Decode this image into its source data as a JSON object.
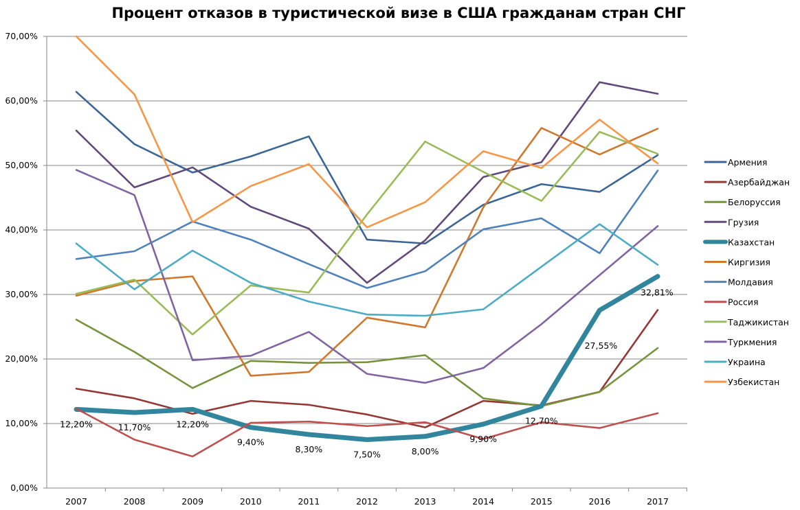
{
  "chart_data": {
    "type": "line",
    "title": "Процент отказов в туристической визе в США гражданам стран СНГ",
    "xlabel": "",
    "ylabel": "",
    "ylim": [
      0,
      70
    ],
    "grid": true,
    "legend_position": "right",
    "x": [
      "2007",
      "2008",
      "2009",
      "2010",
      "2011",
      "2012",
      "2013",
      "2014",
      "2015",
      "2016",
      "2017"
    ],
    "y_ticks": [
      "0,00%",
      "10,00%",
      "20,00%",
      "30,00%",
      "40,00%",
      "50,00%",
      "60,00%",
      "70,00%"
    ],
    "series": [
      {
        "name": "Армения",
        "color": "#3b6596",
        "values": [
          61.4,
          53.3,
          48.9,
          51.4,
          54.5,
          38.5,
          37.9,
          43.9,
          47.1,
          45.9,
          51.6
        ]
      },
      {
        "name": "Азербайджан",
        "color": "#953735",
        "values": [
          15.4,
          13.9,
          11.5,
          13.5,
          12.9,
          11.4,
          9.4,
          13.5,
          12.8,
          14.9,
          27.6
        ]
      },
      {
        "name": "Белоруссия",
        "color": "#77933c",
        "values": [
          26.1,
          21.1,
          15.5,
          19.7,
          19.4,
          19.5,
          20.6,
          13.9,
          12.7,
          14.9,
          21.7
        ]
      },
      {
        "name": "Грузия",
        "color": "#604a7b",
        "values": [
          55.4,
          46.6,
          49.7,
          43.6,
          40.2,
          31.8,
          38.4,
          48.2,
          50.5,
          62.9,
          61.1
        ]
      },
      {
        "name": "Казахстан",
        "color": "#31859c",
        "thick": true,
        "values": [
          12.2,
          11.7,
          12.2,
          9.4,
          8.3,
          7.5,
          8.0,
          9.9,
          12.7,
          27.55,
          32.81
        ],
        "labels": [
          "12,20%",
          "11,70%",
          "12,20%",
          "9,40%",
          "8,30%",
          "7,50%",
          "8,00%",
          "9,90%",
          "12,70%",
          "27,55%",
          "32,81%"
        ]
      },
      {
        "name": "Киргизия",
        "color": "#d0782c",
        "values": [
          29.8,
          32.1,
          32.8,
          17.4,
          18.0,
          26.4,
          24.9,
          43.5,
          55.8,
          51.7,
          55.7
        ]
      },
      {
        "name": "Молдавия",
        "color": "#4f81bd",
        "values": [
          35.5,
          36.7,
          41.3,
          38.5,
          34.7,
          31.0,
          33.6,
          40.1,
          41.8,
          36.4,
          49.2
        ]
      },
      {
        "name": "Россия",
        "color": "#c0504d",
        "values": [
          12.3,
          7.5,
          4.9,
          10.1,
          10.3,
          9.6,
          10.2,
          7.6,
          10.2,
          9.3,
          11.6
        ]
      },
      {
        "name": "Таджикистан",
        "color": "#9bbb59",
        "values": [
          30.1,
          32.3,
          23.8,
          31.4,
          30.3,
          42.4,
          53.7,
          49.0,
          44.5,
          55.2,
          51.8
        ]
      },
      {
        "name": "Туркмения",
        "color": "#8064a2",
        "values": [
          49.3,
          45.4,
          19.8,
          20.5,
          24.2,
          17.7,
          16.3,
          18.6,
          25.4,
          33.0,
          40.6
        ]
      },
      {
        "name": "Украина",
        "color": "#4bacc6",
        "values": [
          37.9,
          30.8,
          36.8,
          31.8,
          28.9,
          26.9,
          26.7,
          27.7,
          34.3,
          40.9,
          34.6
        ]
      },
      {
        "name": "Узбекистан",
        "color": "#f79646",
        "values": [
          70.5,
          61.0,
          41.2,
          46.8,
          50.2,
          40.4,
          44.3,
          52.2,
          49.6,
          57.1,
          50.3
        ]
      }
    ]
  }
}
